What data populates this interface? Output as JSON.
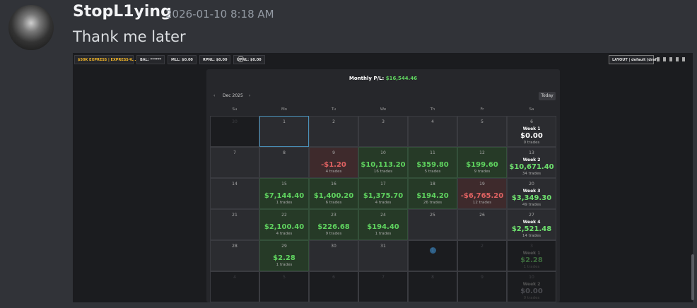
{
  "message": {
    "author": "StopL1ying",
    "timestamp": "2026-01-10 8:18 AM",
    "text": "Thank me later"
  },
  "toolbar": {
    "account": "$50K EXPRESS | EXPRESS-V...",
    "items": [
      "BAL: ******",
      "MLL: $0.00",
      "RPNL: $0.00",
      "UPNL: $0.00"
    ],
    "layout": "LAYOUT | default (draft)"
  },
  "calendar": {
    "title_label": "Monthly P/L:",
    "title_value": "$16,544.46",
    "month": "Dec 2025",
    "today": "Today",
    "weekdays": [
      "Su",
      "Mo",
      "Tu",
      "We",
      "Th",
      "Fr",
      "Sa"
    ],
    "rows": [
      [
        {
          "day": "30",
          "tone": "dim"
        },
        {
          "day": "1",
          "tone": "selected"
        },
        {
          "day": "2"
        },
        {
          "day": "3"
        },
        {
          "day": "4"
        },
        {
          "day": "5"
        },
        {
          "day": "6",
          "week": "Week 1",
          "pnl": "$0.00",
          "trades": "0 trades",
          "tone": "week"
        }
      ],
      [
        {
          "day": "7"
        },
        {
          "day": "8"
        },
        {
          "day": "9",
          "pnl": "-$1.20",
          "trades": "4 trades",
          "tone": "red"
        },
        {
          "day": "10",
          "pnl": "$10,113.20",
          "trades": "16 trades",
          "tone": "green"
        },
        {
          "day": "11",
          "pnl": "$359.80",
          "trades": "5 trades",
          "tone": "green"
        },
        {
          "day": "12",
          "pnl": "$199.60",
          "trades": "9 trades",
          "tone": "green"
        },
        {
          "day": "13",
          "week": "Week 2",
          "pnl": "$10,671.40",
          "trades": "34 trades",
          "tone": "week"
        }
      ],
      [
        {
          "day": "14"
        },
        {
          "day": "15",
          "pnl": "$7,144.40",
          "trades": "1 trades",
          "tone": "green"
        },
        {
          "day": "16",
          "pnl": "$1,400.20",
          "trades": "6 trades",
          "tone": "green"
        },
        {
          "day": "17",
          "pnl": "$1,375.70",
          "trades": "4 trades",
          "tone": "green"
        },
        {
          "day": "18",
          "pnl": "$194.20",
          "trades": "26 trades",
          "tone": "green"
        },
        {
          "day": "19",
          "pnl": "-$6,765.20",
          "trades": "12 trades",
          "tone": "red"
        },
        {
          "day": "20",
          "week": "Week 3",
          "pnl": "$3,349.30",
          "trades": "49 trades",
          "tone": "week"
        }
      ],
      [
        {
          "day": "21"
        },
        {
          "day": "22",
          "pnl": "$2,100.40",
          "trades": "4 trades",
          "tone": "green"
        },
        {
          "day": "23",
          "pnl": "$226.68",
          "trades": "9 trades",
          "tone": "green"
        },
        {
          "day": "24",
          "pnl": "$194.40",
          "trades": "1 trades",
          "tone": "green"
        },
        {
          "day": "25"
        },
        {
          "day": "26"
        },
        {
          "day": "27",
          "week": "Week 4",
          "pnl": "$2,521.48",
          "trades": "14 trades",
          "tone": "week"
        }
      ],
      [
        {
          "day": "28"
        },
        {
          "day": "29",
          "pnl": "$2.28",
          "trades": "1 trades",
          "tone": "green"
        },
        {
          "day": "30"
        },
        {
          "day": "31"
        },
        {
          "day": "1",
          "tone": "dim-today"
        },
        {
          "day": "2",
          "tone": "dim"
        },
        {
          "day": "3",
          "week": "Week 1",
          "pnl": "$2.28",
          "trades": "1 trades",
          "tone": "dim-week"
        }
      ],
      [
        {
          "day": "4",
          "tone": "dim"
        },
        {
          "day": "5",
          "tone": "dim"
        },
        {
          "day": "6",
          "tone": "dim"
        },
        {
          "day": "7",
          "tone": "dim"
        },
        {
          "day": "8",
          "tone": "dim"
        },
        {
          "day": "9",
          "tone": "dim"
        },
        {
          "day": "10",
          "week": "Week 2",
          "pnl": "$0.00",
          "trades": "0 trades",
          "tone": "dim-week"
        }
      ]
    ]
  }
}
